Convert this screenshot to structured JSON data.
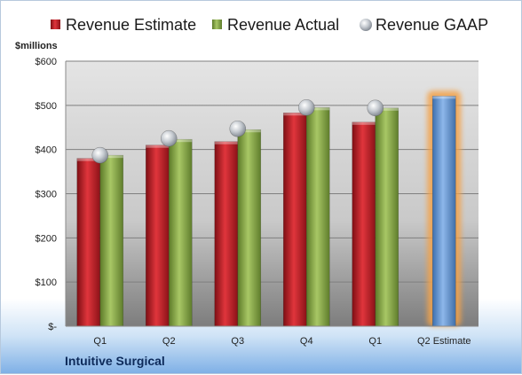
{
  "chart_data": {
    "type": "bar",
    "company": "Intuitive Surgical",
    "unit_label": "$millions",
    "categories": [
      "Q1",
      "Q2",
      "Q3",
      "Q4",
      "Q1",
      "Q2 Estimate"
    ],
    "series": [
      {
        "name": "Revenue Estimate",
        "kind": "bar",
        "color": "#c8232c",
        "values": [
          380,
          410,
          418,
          483,
          462,
          null
        ]
      },
      {
        "name": "Revenue Actual",
        "kind": "bar",
        "color": "#8fae4c",
        "values": [
          387,
          423,
          445,
          495,
          494,
          null
        ]
      },
      {
        "name": "Revenue GAAP",
        "kind": "marker",
        "color": "#b8bec6",
        "values": [
          387,
          425,
          447,
          495,
          494,
          null
        ]
      },
      {
        "name": "Q2 Estimate",
        "kind": "highlight-bar",
        "color": "#6f9fd8",
        "values": [
          null,
          null,
          null,
          null,
          null,
          521
        ]
      }
    ],
    "ylim": [
      0,
      600
    ],
    "y_ticks": [
      0,
      100,
      200,
      300,
      400,
      500,
      600
    ],
    "y_tick_labels": [
      "$-",
      "$100",
      "$200",
      "$300",
      "$400",
      "$500",
      "$600"
    ],
    "grid": true,
    "legend_position": "top"
  }
}
